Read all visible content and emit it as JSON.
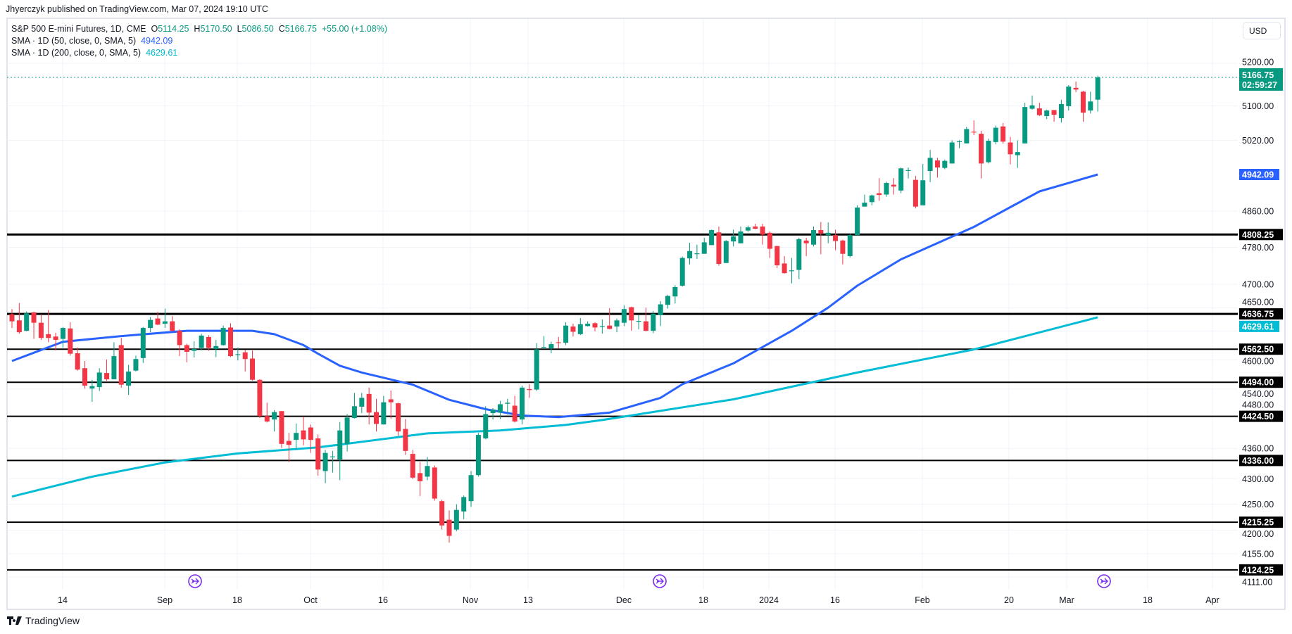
{
  "header": {
    "published": "Jhyerczyk published on TradingView.com, Mar 07, 2024 19:10 UTC"
  },
  "legend": {
    "symbol": "S&P 500 E-mini Futures, 1D, CME",
    "open_label": "O",
    "open": "5114.25",
    "high_label": "H",
    "high": "5170.50",
    "low_label": "L",
    "low": "5086.50",
    "close_label": "C",
    "close": "5166.75",
    "change": "+55.00 (+1.08%)",
    "sma50_label": "SMA · 1D (50, close, 0, SMA, 5)",
    "sma50_value": "4942.09",
    "sma200_label": "SMA · 1D (200, close, 0, SMA, 5)",
    "sma200_value": "4629.61"
  },
  "currency_button": "USD",
  "branding": {
    "logo_text": "TradingView"
  },
  "colors": {
    "up": "#089981",
    "down": "#f23645",
    "sma50": "#2962ff",
    "sma200": "#00bcd4",
    "levels": "#000000",
    "event_icon": "#7b2cf0"
  },
  "event_icons": [
    "economic-event-icon",
    "economic-event-icon",
    "economic-event-icon"
  ],
  "chart_data": {
    "type": "candlestick",
    "title": "S&P 500 E-mini Futures, 1D, CME",
    "y_scale": "log",
    "ylim": [
      4111,
      5240
    ],
    "grid": true,
    "x_tick_labels": [
      "14",
      "Sep",
      "18",
      "Oct",
      "16",
      "Nov",
      "13",
      "Dec",
      "18",
      "2024",
      "16",
      "Feb",
      "20",
      "Mar",
      "18",
      "Apr"
    ],
    "y_tick_labels": [
      "5200.00",
      "5100.00",
      "5020.00",
      "4860.00",
      "4780.00",
      "4700.00",
      "4650.00",
      "4600.00",
      "4540.00",
      "4480.00",
      "4360.00",
      "4300.00",
      "4250.00",
      "4200.00",
      "4155.00",
      "4111.00"
    ],
    "ohlc_fields": [
      "open",
      "high",
      "low",
      "close"
    ],
    "candles": [
      [
        4636,
        4647,
        4607,
        4621
      ],
      [
        4623,
        4660,
        4595,
        4598
      ],
      [
        4601,
        4642,
        4600,
        4638
      ],
      [
        4640,
        4641,
        4584,
        4618
      ],
      [
        4618,
        4636,
        4582,
        4586
      ],
      [
        4594,
        4645,
        4577,
        4586
      ],
      [
        4589,
        4597,
        4560,
        4582
      ],
      [
        4584,
        4609,
        4566,
        4607
      ],
      [
        4606,
        4619,
        4549,
        4553
      ],
      [
        4554,
        4566,
        4518,
        4520
      ],
      [
        4523,
        4538,
        4481,
        4487
      ],
      [
        4481,
        4499,
        4454,
        4486
      ],
      [
        4484,
        4523,
        4476,
        4514
      ],
      [
        4513,
        4541,
        4497,
        4500
      ],
      [
        4500,
        4577,
        4500,
        4548
      ],
      [
        4571,
        4586,
        4483,
        4489
      ],
      [
        4487,
        4530,
        4468,
        4516
      ],
      [
        4518,
        4549,
        4516,
        4542
      ],
      [
        4544,
        4609,
        4534,
        4607
      ],
      [
        4607,
        4630,
        4598,
        4624
      ],
      [
        4627,
        4641,
        4613,
        4614
      ],
      [
        4616,
        4648,
        4607,
        4621
      ],
      [
        4621,
        4632,
        4600,
        4601
      ],
      [
        4601,
        4604,
        4548,
        4571
      ],
      [
        4571,
        4574,
        4535,
        4557
      ],
      [
        4559,
        4579,
        4545,
        4563
      ],
      [
        4565,
        4595,
        4560,
        4591
      ],
      [
        4588,
        4592,
        4559,
        4565
      ],
      [
        4563,
        4582,
        4546,
        4569
      ],
      [
        4571,
        4612,
        4570,
        4607
      ],
      [
        4608,
        4617,
        4546,
        4548
      ],
      [
        4551,
        4566,
        4539,
        4552
      ],
      [
        4556,
        4561,
        4516,
        4542
      ],
      [
        4543,
        4560,
        4497,
        4499
      ],
      [
        4499,
        4500,
        4421,
        4425
      ],
      [
        4425,
        4452,
        4412,
        4414
      ],
      [
        4418,
        4437,
        4394,
        4433
      ],
      [
        4435,
        4435,
        4361,
        4369
      ],
      [
        4375,
        4391,
        4333,
        4367
      ],
      [
        4377,
        4410,
        4357,
        4391
      ],
      [
        4396,
        4424,
        4366,
        4378
      ],
      [
        4402,
        4408,
        4351,
        4377
      ],
      [
        4380,
        4388,
        4306,
        4318
      ],
      [
        4315,
        4357,
        4291,
        4351
      ],
      [
        4343,
        4355,
        4312,
        4344
      ],
      [
        4338,
        4413,
        4297,
        4396
      ],
      [
        4369,
        4429,
        4354,
        4422
      ],
      [
        4421,
        4472,
        4420,
        4445
      ],
      [
        4444,
        4472,
        4431,
        4462
      ],
      [
        4470,
        4483,
        4408,
        4432
      ],
      [
        4433,
        4460,
        4394,
        4409
      ],
      [
        4408,
        4466,
        4408,
        4453
      ],
      [
        4459,
        4477,
        4420,
        4453
      ],
      [
        4451,
        4452,
        4385,
        4394
      ],
      [
        4399,
        4419,
        4347,
        4355
      ],
      [
        4349,
        4357,
        4299,
        4302
      ],
      [
        4311,
        4333,
        4266,
        4295
      ],
      [
        4304,
        4343,
        4297,
        4325
      ],
      [
        4322,
        4326,
        4257,
        4261
      ],
      [
        4256,
        4259,
        4201,
        4209
      ],
      [
        4220,
        4238,
        4176,
        4189
      ],
      [
        4201,
        4250,
        4198,
        4239
      ],
      [
        4236,
        4267,
        4221,
        4264
      ],
      [
        4256,
        4315,
        4245,
        4307
      ],
      [
        4307,
        4391,
        4304,
        4387
      ],
      [
        4380,
        4445,
        4378,
        4429
      ],
      [
        4431,
        4441,
        4418,
        4438
      ],
      [
        4432,
        4456,
        4419,
        4449
      ],
      [
        4450,
        4460,
        4428,
        4452
      ],
      [
        4446,
        4466,
        4412,
        4414
      ],
      [
        4418,
        4487,
        4408,
        4483
      ],
      [
        4480,
        4490,
        4462,
        4478
      ],
      [
        4479,
        4575,
        4476,
        4562
      ],
      [
        4566,
        4590,
        4563,
        4567
      ],
      [
        4564,
        4578,
        4554,
        4573
      ],
      [
        4577,
        4588,
        4564,
        4576
      ],
      [
        4576,
        4619,
        4571,
        4612
      ],
      [
        4610,
        4616,
        4589,
        4599
      ],
      [
        4594,
        4628,
        4592,
        4615
      ],
      [
        4611,
        4621,
        4610,
        4616
      ],
      [
        4617,
        4619,
        4600,
        4608
      ],
      [
        4610,
        4625,
        4595,
        4611
      ],
      [
        4612,
        4649,
        4604,
        4605
      ],
      [
        4610,
        4627,
        4598,
        4623
      ],
      [
        4618,
        4655,
        4611,
        4647
      ],
      [
        4651,
        4652,
        4601,
        4623
      ],
      [
        4621,
        4634,
        4604,
        4622
      ],
      [
        4621,
        4650,
        4600,
        4601
      ],
      [
        4601,
        4643,
        4596,
        4637
      ],
      [
        4634,
        4664,
        4611,
        4657
      ],
      [
        4656,
        4677,
        4648,
        4675
      ],
      [
        4674,
        4698,
        4659,
        4694
      ],
      [
        4697,
        4760,
        4695,
        4757
      ],
      [
        4756,
        4790,
        4743,
        4772
      ],
      [
        4766,
        4786,
        4755,
        4767
      ],
      [
        4766,
        4801,
        4766,
        4791
      ],
      [
        4785,
        4819,
        4785,
        4818
      ],
      [
        4813,
        4826,
        4740,
        4744
      ],
      [
        4746,
        4796,
        4746,
        4794
      ],
      [
        4793,
        4819,
        4782,
        4804
      ],
      [
        4789,
        4826,
        4789,
        4815
      ],
      [
        4817,
        4828,
        4814,
        4824
      ],
      [
        4826,
        4832,
        4820,
        4821
      ],
      [
        4826,
        4832,
        4786,
        4808
      ],
      [
        4812,
        4815,
        4757,
        4777
      ],
      [
        4783,
        4783,
        4735,
        4741
      ],
      [
        4745,
        4761,
        4723,
        4724
      ],
      [
        4729,
        4757,
        4702,
        4730
      ],
      [
        4731,
        4801,
        4711,
        4798
      ],
      [
        4795,
        4801,
        4761,
        4789
      ],
      [
        4786,
        4826,
        4782,
        4818
      ],
      [
        4818,
        4836,
        4765,
        4810
      ],
      [
        4807,
        4835,
        4789,
        4812
      ],
      [
        4807,
        4819,
        4774,
        4794
      ],
      [
        4795,
        4797,
        4743,
        4766
      ],
      [
        4761,
        4811,
        4758,
        4807
      ],
      [
        4807,
        4873,
        4807,
        4868
      ],
      [
        4870,
        4897,
        4870,
        4879
      ],
      [
        4880,
        4897,
        4873,
        4895
      ],
      [
        4900,
        4934,
        4883,
        4896
      ],
      [
        4897,
        4926,
        4892,
        4923
      ],
      [
        4919,
        4934,
        4897,
        4915
      ],
      [
        4906,
        4958,
        4900,
        4956
      ],
      [
        4951,
        4958,
        4933,
        4952
      ],
      [
        4930,
        4939,
        4866,
        4870
      ],
      [
        4873,
        4966,
        4873,
        4929
      ],
      [
        4950,
        4998,
        4925,
        4980
      ],
      [
        4974,
        4980,
        4935,
        4958
      ],
      [
        4957,
        4976,
        4954,
        4973
      ],
      [
        4967,
        5020,
        4967,
        5015
      ],
      [
        5016,
        5020,
        5002,
        5018
      ],
      [
        5013,
        5051,
        5013,
        5046
      ],
      [
        5040,
        5066,
        5032,
        5038
      ],
      [
        5035,
        5042,
        4933,
        4967
      ],
      [
        4970,
        5024,
        4967,
        5019
      ],
      [
        5016,
        5054,
        5011,
        5049
      ],
      [
        5052,
        5060,
        5012,
        5017
      ],
      [
        5015,
        5028,
        4965,
        4988
      ],
      [
        4986,
        5020,
        4957,
        4993
      ],
      [
        5013,
        5107,
        5013,
        5097
      ],
      [
        5093,
        5124,
        5091,
        5101
      ],
      [
        5094,
        5107,
        5076,
        5078
      ],
      [
        5076,
        5091,
        5069,
        5089
      ],
      [
        5090,
        5090,
        5063,
        5079
      ],
      [
        5071,
        5114,
        5061,
        5104
      ],
      [
        5099,
        5148,
        5089,
        5145
      ],
      [
        5142,
        5157,
        5132,
        5138
      ],
      [
        5133,
        5135,
        5063,
        5084
      ],
      [
        5089,
        5133,
        5082,
        5110
      ],
      [
        5114.25,
        5170.5,
        5086.5,
        5166.75
      ]
    ],
    "sma50": [
      [
        0,
        4538
      ],
      [
        7,
        4578
      ],
      [
        15,
        4590
      ],
      [
        24,
        4601
      ],
      [
        33,
        4601
      ],
      [
        36,
        4594
      ],
      [
        40,
        4571
      ],
      [
        42,
        4553
      ],
      [
        45,
        4528
      ],
      [
        48,
        4514
      ],
      [
        55,
        4489
      ],
      [
        60,
        4458
      ],
      [
        65,
        4439
      ],
      [
        70,
        4426
      ],
      [
        75,
        4423
      ],
      [
        82,
        4432
      ],
      [
        89,
        4462
      ],
      [
        92,
        4490
      ],
      [
        99,
        4533
      ],
      [
        107,
        4601
      ],
      [
        112,
        4650
      ],
      [
        116,
        4697
      ],
      [
        122,
        4754
      ],
      [
        132,
        4825
      ],
      [
        141,
        4904
      ],
      [
        149,
        4942.09
      ]
    ],
    "sma200": [
      [
        0,
        4265
      ],
      [
        11,
        4304
      ],
      [
        21,
        4332
      ],
      [
        31,
        4350
      ],
      [
        42,
        4362
      ],
      [
        57,
        4390
      ],
      [
        67,
        4396
      ],
      [
        76,
        4407
      ],
      [
        81,
        4417
      ],
      [
        99,
        4459
      ],
      [
        116,
        4514
      ],
      [
        132,
        4562
      ],
      [
        149,
        4629.61
      ]
    ],
    "horizontal_levels": [
      "4808.25",
      "4636.75",
      "4562.50",
      "4494.00",
      "4424.50",
      "4336.00",
      "4215.25",
      "4124.25"
    ],
    "last_price": {
      "value": "5166.75",
      "countdown": "02:59:27"
    },
    "sma50_last": "4942.09",
    "sma200_last": "4629.61"
  }
}
